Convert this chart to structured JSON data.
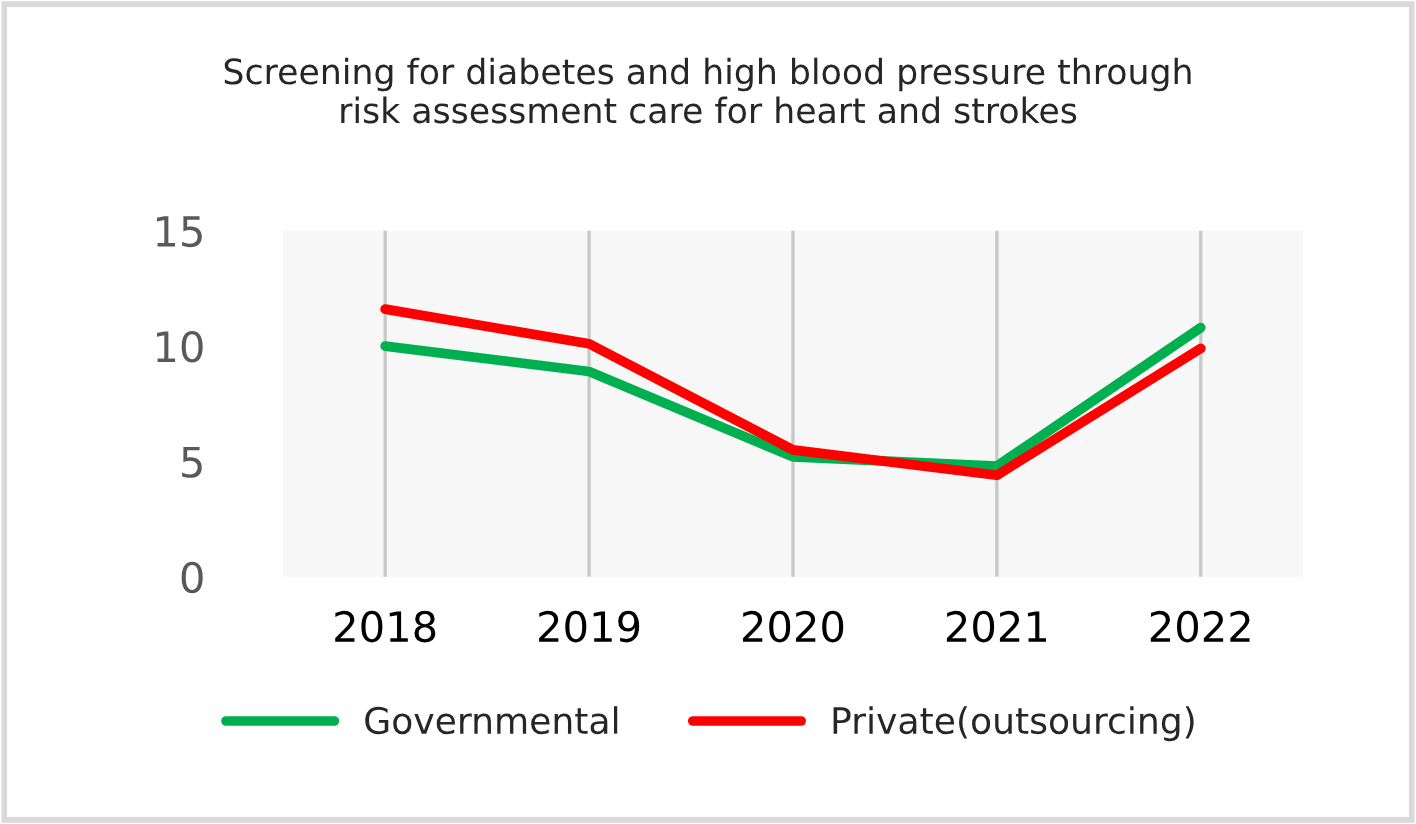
{
  "chart_data": {
    "type": "line",
    "title": "Screening for diabetes and high blood pressure through\nrisk assessment care for heart and strokes",
    "categories": [
      "2018",
      "2019",
      "2020",
      "2021",
      "2022"
    ],
    "series": [
      {
        "name": "Governmental",
        "color": "#00b050",
        "values": [
          10.0,
          8.9,
          5.2,
          4.8,
          10.8
        ]
      },
      {
        "name": "Private(outsourcing)",
        "color": "#ff0000",
        "values": [
          11.6,
          10.1,
          5.5,
          4.4,
          9.9
        ]
      }
    ],
    "ylim": [
      0,
      15
    ],
    "yticks": [
      0,
      5,
      10,
      15
    ],
    "grid": "x",
    "legend": "bottom",
    "marker": "none",
    "line_style": "solid"
  }
}
